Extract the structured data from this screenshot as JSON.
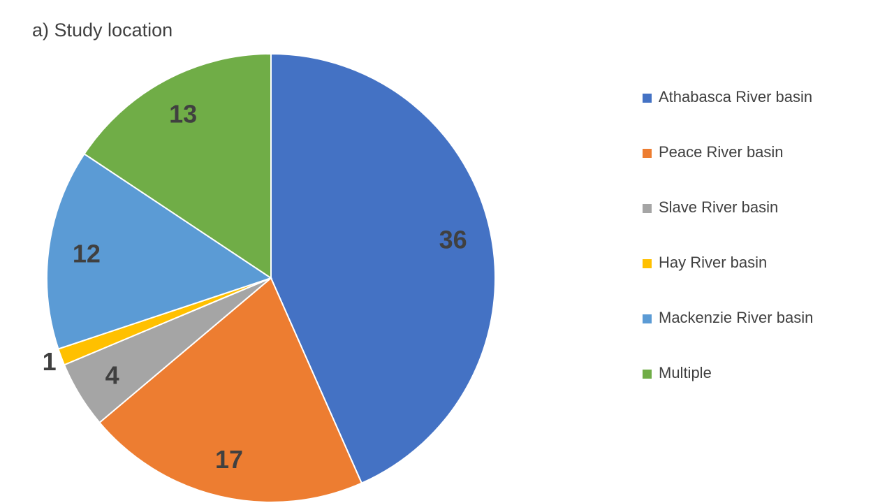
{
  "chart_data": {
    "type": "pie",
    "title": "a) Study location",
    "slices": [
      {
        "label": "Athabasca River basin",
        "value": 36,
        "color": "#4472C4"
      },
      {
        "label": "Peace River basin",
        "value": 17,
        "color": "#ED7D31"
      },
      {
        "label": "Slave River basin",
        "value": 4,
        "color": "#A5A5A5"
      },
      {
        "label": "Hay River basin",
        "value": 1,
        "color": "#FFC000"
      },
      {
        "label": "Mackenzie River basin",
        "value": 12,
        "color": "#5B9BD5"
      },
      {
        "label": "Multiple",
        "value": 13,
        "color": "#70AD47"
      }
    ],
    "legend_position": "right",
    "start_angle": "12 o'clock",
    "direction": "clockwise",
    "data_labels": "values"
  }
}
